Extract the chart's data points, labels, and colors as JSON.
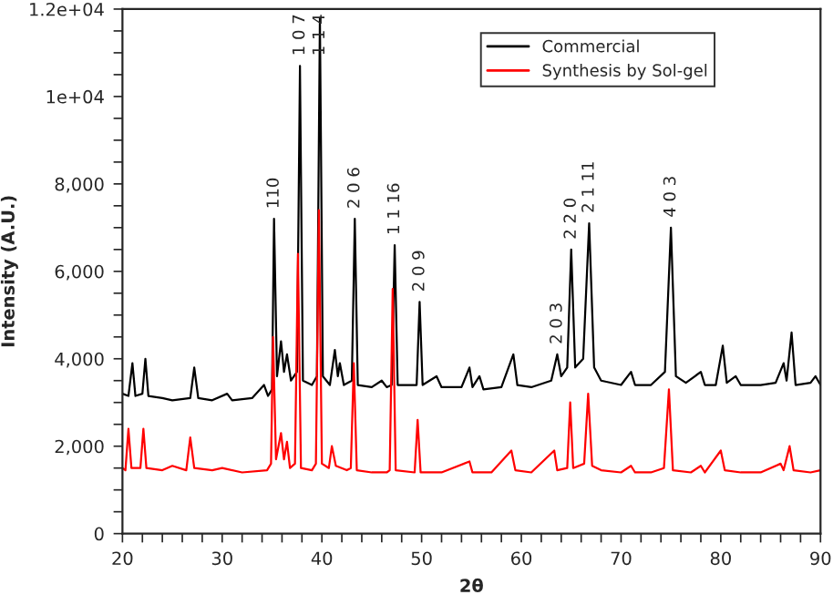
{
  "chart_data": {
    "type": "line",
    "xlabel": "2θ",
    "ylabel": "Intensity (A.U.)",
    "xlim": [
      20,
      90
    ],
    "xticks": [
      20,
      {
        "value": 22,
        "label": null
      },
      {
        "value": 24,
        "label": null
      },
      {
        "value": 26,
        "label": null
      },
      {
        "value": 28,
        "label": null
      },
      30,
      {
        "value": 32,
        "label": null
      },
      {
        "value": 34,
        "label": null
      },
      {
        "value": 36,
        "label": null
      },
      {
        "value": 38,
        "label": null
      },
      40,
      {
        "value": 42,
        "label": null
      },
      {
        "value": 44,
        "label": null
      },
      {
        "value": 46,
        "label": null
      },
      {
        "value": 48,
        "label": null
      },
      50,
      {
        "value": 52,
        "label": null
      },
      {
        "value": 54,
        "label": null
      },
      {
        "value": 56,
        "label": null
      },
      {
        "value": 58,
        "label": null
      },
      60,
      {
        "value": 62,
        "label": null
      },
      {
        "value": 64,
        "label": null
      },
      {
        "value": 66,
        "label": null
      },
      {
        "value": 68,
        "label": null
      },
      70,
      {
        "value": 72,
        "label": null
      },
      {
        "value": 74,
        "label": null
      },
      {
        "value": 76,
        "label": null
      },
      {
        "value": 78,
        "label": null
      },
      80,
      {
        "value": 82,
        "label": null
      },
      {
        "value": 84,
        "label": null
      },
      {
        "value": 86,
        "label": null
      },
      {
        "value": 88,
        "label": null
      },
      90
    ],
    "ylim": [
      0,
      12000
    ],
    "yticks": [
      0,
      {
        "value": 500,
        "label": null
      },
      {
        "value": 1000,
        "label": null
      },
      {
        "value": 1500,
        "label": null
      },
      {
        "value": 2000,
        "label": "2,000"
      },
      {
        "value": 2500,
        "label": null
      },
      {
        "value": 3000,
        "label": null
      },
      {
        "value": 3500,
        "label": null
      },
      {
        "value": 4000,
        "label": "4,000"
      },
      {
        "value": 4500,
        "label": null
      },
      {
        "value": 5000,
        "label": null
      },
      {
        "value": 5500,
        "label": null
      },
      {
        "value": 6000,
        "label": "6,000"
      },
      {
        "value": 6500,
        "label": null
      },
      {
        "value": 7000,
        "label": null
      },
      {
        "value": 7500,
        "label": null
      },
      {
        "value": 8000,
        "label": "8,000"
      },
      {
        "value": 8500,
        "label": null
      },
      {
        "value": 9000,
        "label": null
      },
      {
        "value": 9500,
        "label": null
      },
      {
        "value": 10000,
        "label": "1e+04"
      },
      {
        "value": 10500,
        "label": null
      },
      {
        "value": 11000,
        "label": null
      },
      {
        "value": 11500,
        "label": null
      },
      {
        "value": 12000,
        "label": "1.2e+04"
      }
    ],
    "grid": false,
    "legend": "top right",
    "marker": "none",
    "line_style": "solid",
    "series": [
      {
        "name": "Commercial",
        "color": "#000000",
        "x": [
          20,
          20.6,
          21.0,
          21.3,
          22.0,
          22.3,
          22.6,
          24,
          25,
          26.8,
          27.2,
          27.6,
          29,
          30.5,
          31,
          33,
          34.2,
          34.6,
          35.0,
          35.2,
          35.5,
          35.9,
          36.2,
          36.5,
          36.9,
          37.5,
          37.8,
          38.1,
          39.0,
          39.5,
          39.8,
          40.1,
          40.8,
          41.3,
          41.6,
          41.8,
          42.2,
          43.0,
          43.3,
          43.6,
          45,
          46,
          46.5,
          47.0,
          47.3,
          47.6,
          49.5,
          49.8,
          50.1,
          51.5,
          52,
          54,
          54.8,
          55.1,
          55.8,
          56.2,
          58,
          59.2,
          59.6,
          61,
          63,
          63.6,
          64.0,
          64.6,
          65.0,
          65.4,
          66.2,
          66.8,
          67.3,
          68,
          70,
          71,
          71.4,
          73,
          74.4,
          75.0,
          75.5,
          76.5,
          78,
          78.4,
          79.5,
          80.2,
          80.6,
          81.5,
          82,
          84,
          85.5,
          86.3,
          86.6,
          87.1,
          87.5,
          89,
          89.5,
          90
        ],
        "values": [
          3200,
          3150,
          3900,
          3150,
          3200,
          4000,
          3150,
          3100,
          3050,
          3100,
          3800,
          3100,
          3050,
          3200,
          3050,
          3100,
          3400,
          3150,
          3300,
          7200,
          3600,
          4400,
          3700,
          4100,
          3500,
          3700,
          10700,
          3500,
          3400,
          3600,
          11800,
          3600,
          3400,
          4200,
          3600,
          3900,
          3400,
          3500,
          7200,
          3400,
          3350,
          3500,
          3350,
          3400,
          6600,
          3400,
          3400,
          5300,
          3400,
          3600,
          3350,
          3350,
          3800,
          3350,
          3600,
          3300,
          3350,
          4100,
          3400,
          3350,
          3500,
          4100,
          3600,
          3800,
          6500,
          3800,
          4000,
          7100,
          3800,
          3500,
          3400,
          3700,
          3400,
          3400,
          3700,
          7000,
          3600,
          3450,
          3700,
          3400,
          3400,
          4300,
          3450,
          3600,
          3400,
          3400,
          3450,
          3900,
          3500,
          4600,
          3400,
          3450,
          3600,
          3400
        ]
      },
      {
        "name": "Synthesis by Sol-gel",
        "color": "#ff0000",
        "x": [
          20,
          20.3,
          20.6,
          20.9,
          21.8,
          22.1,
          22.4,
          24,
          25,
          26.4,
          26.8,
          27.2,
          29,
          30,
          32,
          34.5,
          34.9,
          35.1,
          35.4,
          35.9,
          36.2,
          36.5,
          36.8,
          37.3,
          37.6,
          37.9,
          39.0,
          39.4,
          39.7,
          40.0,
          40.7,
          41.0,
          41.4,
          42.5,
          42.9,
          43.2,
          43.5,
          45,
          46.5,
          46.8,
          47.1,
          47.4,
          49.3,
          49.6,
          49.9,
          52,
          54.8,
          55.1,
          57,
          59,
          59.4,
          61,
          63.3,
          63.6,
          64.6,
          64.9,
          65.2,
          66.3,
          66.7,
          67.1,
          68,
          70,
          71,
          71.4,
          73,
          74.3,
          74.8,
          75.2,
          77,
          78,
          78.4,
          80,
          80.4,
          82,
          84,
          86,
          86.3,
          86.9,
          87.3,
          89,
          90
        ],
        "values": [
          1500,
          1450,
          2400,
          1500,
          1500,
          2400,
          1500,
          1450,
          1550,
          1450,
          2200,
          1500,
          1450,
          1500,
          1400,
          1450,
          1600,
          4500,
          1700,
          2300,
          1700,
          2100,
          1500,
          1600,
          6400,
          1500,
          1450,
          1600,
          7400,
          1600,
          1500,
          2000,
          1550,
          1450,
          1500,
          3900,
          1450,
          1400,
          1400,
          1450,
          5600,
          1450,
          1400,
          2600,
          1400,
          1400,
          1650,
          1400,
          1400,
          1900,
          1450,
          1400,
          1900,
          1450,
          1500,
          3000,
          1500,
          1600,
          3200,
          1550,
          1450,
          1400,
          1550,
          1400,
          1400,
          1500,
          3300,
          1450,
          1400,
          1550,
          1400,
          1900,
          1450,
          1400,
          1400,
          1600,
          1450,
          2000,
          1450,
          1400,
          1450
        ]
      }
    ],
    "annotations": [
      {
        "text": "110",
        "x": 35.2,
        "y": 7200
      },
      {
        "text": "1 0 7",
        "x": 37.8,
        "y": 10700
      },
      {
        "text": "1 1 4",
        "x": 39.8,
        "y": 10700
      },
      {
        "text": "2 0 6",
        "x": 43.3,
        "y": 7200
      },
      {
        "text": "1 1 16",
        "x": 47.3,
        "y": 6600
      },
      {
        "text": "2 0 9",
        "x": 49.8,
        "y": 5300
      },
      {
        "text": "2 0 3",
        "x": 63.6,
        "y": 4100
      },
      {
        "text": "2 2 0",
        "x": 65.0,
        "y": 6500
      },
      {
        "text": "2 1 11",
        "x": 66.8,
        "y": 7100
      },
      {
        "text": "4 0 3",
        "x": 75.0,
        "y": 7000
      }
    ]
  }
}
